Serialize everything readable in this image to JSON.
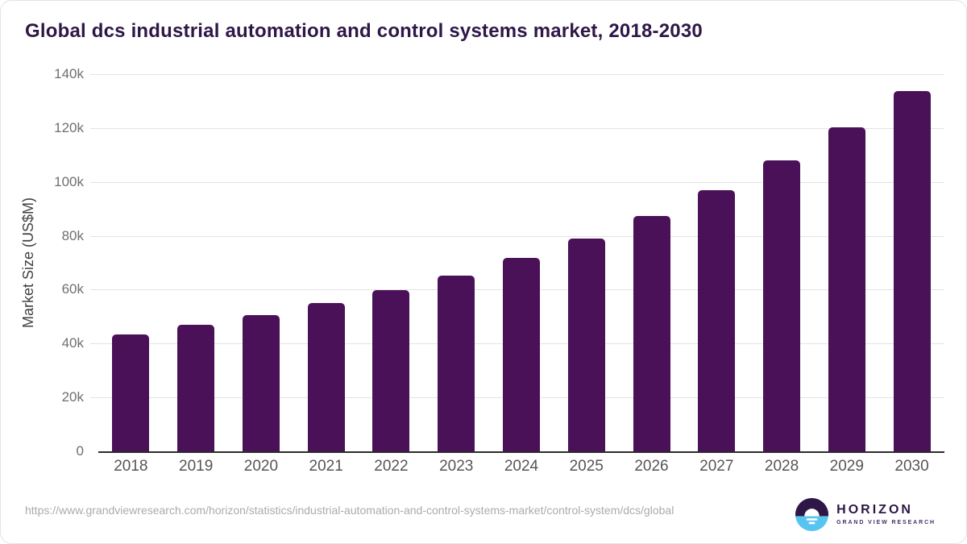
{
  "title": "Global dcs industrial automation and control systems market, 2018-2030",
  "source": {
    "url": "https://www.grandviewresearch.com/horizon/statistics/industrial-automation-and-control-systems-market/control-system/dcs/global"
  },
  "logo": {
    "name": "HORIZON",
    "subtitle": "GRAND VIEW RESEARCH",
    "icon": "sunset-horizon-icon",
    "purple": "#2e1747",
    "blue": "#58c5f0"
  },
  "chart_data": {
    "type": "bar",
    "title": "Global dcs industrial automation and control systems market, 2018-2030",
    "categories": [
      "2018",
      "2019",
      "2020",
      "2021",
      "2022",
      "2023",
      "2024",
      "2025",
      "2026",
      "2027",
      "2028",
      "2029",
      "2030"
    ],
    "values": [
      43400,
      46900,
      50600,
      55000,
      59800,
      65100,
      71900,
      79000,
      87300,
      96800,
      107900,
      120300,
      133700
    ],
    "xlabel": "",
    "ylabel": "Market Size (US$M)",
    "ylim": [
      0,
      140000
    ],
    "ytick_labels": [
      "0",
      "20k",
      "40k",
      "60k",
      "80k",
      "100k",
      "120k",
      "140k"
    ],
    "bar_color": "#4a1158",
    "gridline_color": "#e3e3e3",
    "grid": true,
    "legend": false
  }
}
